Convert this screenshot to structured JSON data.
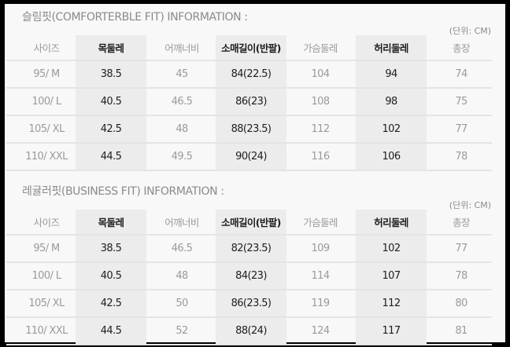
{
  "tables": [
    {
      "title": "슬림핏(COMFORTERBLE FIT) INFORMATION :",
      "unit": "(단위: CM)",
      "headers": [
        "사이즈",
        "목둘레",
        "어깨너비",
        "소매길이(반팔)",
        "가슴둘레",
        "허리둘레",
        "총장"
      ],
      "rows": [
        [
          "95/ M",
          "38.5",
          "45",
          "84(22.5)",
          "104",
          "94",
          "74"
        ],
        [
          "100/ L",
          "40.5",
          "46.5",
          "86(23)",
          "108",
          "98",
          "75"
        ],
        [
          "105/ XL",
          "42.5",
          "48",
          "88(23.5)",
          "112",
          "102",
          "77"
        ],
        [
          "110/ XXL",
          "44.5",
          "49.5",
          "90(24)",
          "116",
          "106",
          "78"
        ]
      ]
    },
    {
      "title": "레귤러핏(BUSINESS FIT) INFORMATION :",
      "unit": "(단위: CM)",
      "headers": [
        "사이즈",
        "목둘레",
        "어깨너비",
        "소매길이(반팔)",
        "가슴둘레",
        "허리둘레",
        "총장"
      ],
      "rows": [
        [
          "95/ M",
          "38.5",
          "46.5",
          "82(23.5)",
          "109",
          "102",
          "77"
        ],
        [
          "100/ L",
          "40.5",
          "48",
          "84(23)",
          "114",
          "107",
          "78"
        ],
        [
          "105/ XL",
          "42.5",
          "50",
          "86(23.5)",
          "119",
          "112",
          "80"
        ],
        [
          "110/ XXL",
          "44.5",
          "52",
          "88(24)",
          "124",
          "117",
          "81"
        ]
      ]
    }
  ]
}
